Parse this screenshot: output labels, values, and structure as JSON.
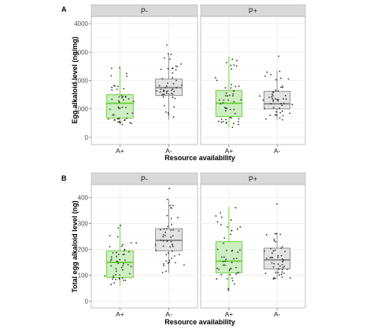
{
  "chart_data": [
    {
      "panel_label": "A",
      "type": "boxplot",
      "ylabel": "Egg alkaloid level (ng/mg)",
      "xlabel": "Resource availability",
      "categories": [
        "A+",
        "A-"
      ],
      "yticks": [
        "0",
        "1000",
        "2000",
        "3000",
        "4000"
      ],
      "ylim": [
        -250,
        4250
      ],
      "facets": [
        {
          "label": "P-",
          "boxes": [
            {
              "category": "A+",
              "color": "#66cc33",
              "fill": "#cdeec0",
              "min": 450,
              "q1": 680,
              "median": 1200,
              "q3": 1500,
              "max": 2450,
              "outliers": [
                2450
              ]
            },
            {
              "category": "A-",
              "color": "#888888",
              "fill": "#e3e3e3",
              "min": 620,
              "q1": 1470,
              "median": 1750,
              "q3": 2050,
              "max": 2950,
              "outliers": [
                3250
              ]
            }
          ]
        },
        {
          "label": "P+",
          "boxes": [
            {
              "category": "A+",
              "color": "#66cc33",
              "fill": "#cdeec0",
              "min": 350,
              "q1": 730,
              "median": 1200,
              "q3": 1650,
              "max": 2850,
              "outliers": []
            },
            {
              "category": "A-",
              "color": "#888888",
              "fill": "#e3e3e3",
              "min": 600,
              "q1": 1000,
              "median": 1180,
              "q3": 1620,
              "max": 2350,
              "outliers": [
                2850
              ]
            }
          ]
        }
      ]
    },
    {
      "panel_label": "B",
      "type": "boxplot",
      "ylabel": "Total egg alkaloid level (ng)",
      "xlabel": "Resource availability",
      "categories": [
        "A+",
        "A-"
      ],
      "yticks": [
        "0",
        "100",
        "200",
        "300",
        "400"
      ],
      "ylim": [
        -25,
        450
      ],
      "facets": [
        {
          "label": "P-",
          "boxes": [
            {
              "category": "A+",
              "color": "#66cc33",
              "fill": "#cdeec0",
              "min": 60,
              "q1": 92,
              "median": 150,
              "q3": 195,
              "max": 300,
              "outliers": []
            },
            {
              "category": "A-",
              "color": "#888888",
              "fill": "#e3e3e3",
              "min": 110,
              "q1": 195,
              "median": 235,
              "q3": 280,
              "max": 395,
              "outliers": [
                435
              ]
            }
          ]
        },
        {
          "label": "P+",
          "boxes": [
            {
              "category": "A+",
              "color": "#66cc33",
              "fill": "#cdeec0",
              "min": 40,
              "q1": 110,
              "median": 155,
              "q3": 230,
              "max": 365,
              "outliers": []
            },
            {
              "category": "A-",
              "color": "#888888",
              "fill": "#e3e3e3",
              "min": 85,
              "q1": 125,
              "median": 160,
              "q3": 205,
              "max": 265,
              "outliers": [
                375
              ]
            }
          ]
        }
      ]
    }
  ],
  "style": {
    "strip_fill": "#d9d9d9",
    "panel_border": "#b3b3b3",
    "grid_color": "#ebebeb",
    "point_color": "#333333"
  }
}
